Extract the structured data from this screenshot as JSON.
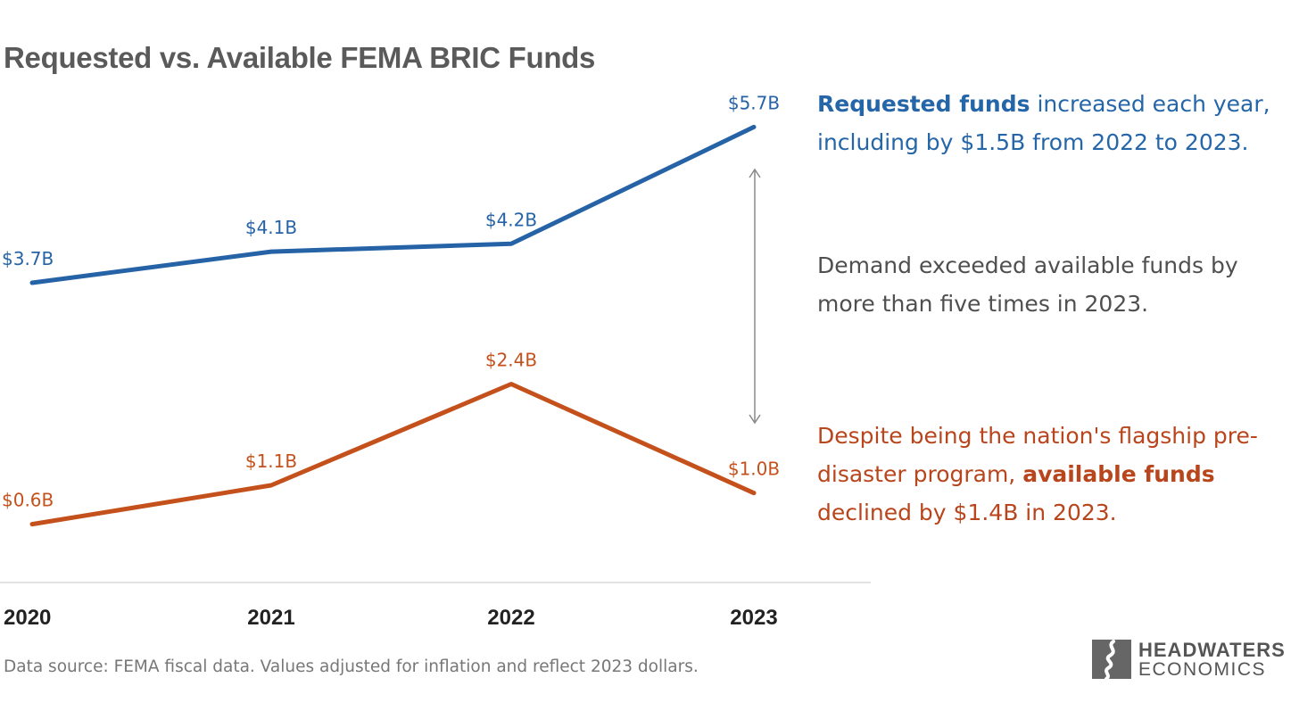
{
  "title": "Requested vs. Available FEMA BRIC Funds",
  "chart_data": {
    "type": "line",
    "x": [
      "2020",
      "2021",
      "2022",
      "2023"
    ],
    "series": [
      {
        "name": "Requested funds",
        "values": [
          3.7,
          4.1,
          4.2,
          5.7
        ],
        "labels": [
          "$3.7B",
          "$4.1B",
          "$4.2B",
          "$5.7B"
        ],
        "color": "#2563a6"
      },
      {
        "name": "available funds",
        "values": [
          0.6,
          1.1,
          2.4,
          1.0
        ],
        "labels": [
          "$0.6B",
          "$1.1B",
          "$2.4B",
          "$1.0B"
        ],
        "color": "#c4511c"
      }
    ],
    "ylabel": "",
    "xlabel": "",
    "grid": false,
    "legend": "none"
  },
  "notes": {
    "requested": {
      "bold": "Requested funds",
      "rest": " increased each year, including by $1.5B from 2022 to 2023."
    },
    "demand": "Demand exceeded available funds by more than five times in 2023.",
    "available": {
      "pre": "Despite being the nation's flagship pre-disaster program, ",
      "bold": "available funds",
      "post": " declined by $1.4B in 2023."
    }
  },
  "source": "Data source: FEMA fiscal data. Values adjusted for inflation and reflect 2023 dollars.",
  "logo": {
    "line1": "HEADWATERS",
    "line2": "ECONOMICS"
  }
}
